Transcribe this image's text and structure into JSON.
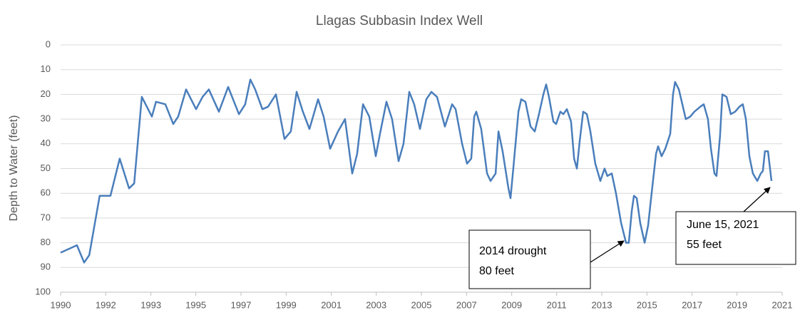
{
  "chart_data": {
    "type": "line",
    "title": "Llagas Subbasin Index Well",
    "y_label": "Depth to Water (feet)",
    "xlim": [
      1990,
      2021
    ],
    "xticks": [
      {
        "value": 1990,
        "label": "1990"
      },
      {
        "value": 1991.94,
        "label": "1992"
      },
      {
        "value": 1993.88,
        "label": "1993"
      },
      {
        "value": 1995.81,
        "label": "1995"
      },
      {
        "value": 1997.75,
        "label": "1997"
      },
      {
        "value": 1999.69,
        "label": "1999"
      },
      {
        "value": 2001.63,
        "label": "2001"
      },
      {
        "value": 2003.56,
        "label": "2003"
      },
      {
        "value": 2005.5,
        "label": "2005"
      },
      {
        "value": 2007.44,
        "label": "2007"
      },
      {
        "value": 2009.38,
        "label": "2009"
      },
      {
        "value": 2011.31,
        "label": "2011"
      },
      {
        "value": 2013.25,
        "label": "2013"
      },
      {
        "value": 2015.19,
        "label": "2015"
      },
      {
        "value": 2017.13,
        "label": "2017"
      },
      {
        "value": 2019.06,
        "label": "2019"
      },
      {
        "value": 2021,
        "label": "2021"
      }
    ],
    "ylim": [
      0,
      100
    ],
    "yticks": [
      0,
      10,
      20,
      30,
      40,
      50,
      60,
      70,
      80,
      90,
      100
    ],
    "y_inverted": true,
    "grid": true,
    "series": [
      {
        "color": "#4a7ebb",
        "x": [
          1990.0,
          1990.7,
          1991.01,
          1991.23,
          1991.68,
          1992.14,
          1992.54,
          1992.94,
          1993.16,
          1993.49,
          1993.92,
          1994.1,
          1994.5,
          1994.84,
          1995.05,
          1995.39,
          1995.82,
          1996.1,
          1996.37,
          1996.8,
          1997.2,
          1997.66,
          1997.93,
          1998.15,
          1998.36,
          1998.67,
          1998.91,
          1999.25,
          1999.62,
          1999.89,
          2000.14,
          2000.41,
          2000.69,
          2001.06,
          2001.3,
          2001.58,
          2001.92,
          2002.22,
          2002.53,
          2002.74,
          2002.99,
          2003.26,
          2003.54,
          2003.72,
          2004.0,
          2004.24,
          2004.52,
          2004.73,
          2004.98,
          2005.19,
          2005.44,
          2005.71,
          2005.93,
          2006.17,
          2006.51,
          2006.82,
          2006.97,
          2007.25,
          2007.46,
          2007.64,
          2007.77,
          2007.86,
          2008.07,
          2008.32,
          2008.47,
          2008.69,
          2008.81,
          2008.99,
          2009.24,
          2009.33,
          2009.45,
          2009.67,
          2009.79,
          2009.97,
          2010.19,
          2010.37,
          2010.55,
          2010.74,
          2010.86,
          2010.98,
          2011.17,
          2011.29,
          2011.47,
          2011.6,
          2011.75,
          2011.93,
          2012.06,
          2012.18,
          2012.3,
          2012.45,
          2012.61,
          2012.76,
          2012.97,
          2013.19,
          2013.37,
          2013.49,
          2013.68,
          2013.86,
          2014.08,
          2014.29,
          2014.41,
          2014.54,
          2014.63,
          2014.75,
          2014.9,
          2015.09,
          2015.24,
          2015.39,
          2015.58,
          2015.67,
          2015.82,
          2015.98,
          2016.19,
          2016.31,
          2016.4,
          2016.56,
          2016.71,
          2016.86,
          2017.05,
          2017.23,
          2017.48,
          2017.63,
          2017.81,
          2017.94,
          2018.09,
          2018.18,
          2018.33,
          2018.43,
          2018.61,
          2018.79,
          2018.98,
          2019.16,
          2019.31,
          2019.44,
          2019.59,
          2019.74,
          2019.93,
          2020.08,
          2020.17,
          2020.26,
          2020.39,
          2020.54
        ],
        "values": [
          84,
          81,
          88,
          85,
          61,
          61,
          46,
          58,
          56,
          21,
          29,
          23,
          24,
          32,
          29,
          18,
          26,
          21,
          18,
          27,
          17,
          28,
          24,
          14,
          18,
          26,
          25,
          20,
          38,
          35,
          19,
          27,
          34,
          22,
          29,
          42,
          35,
          30,
          52,
          44,
          24,
          29,
          45,
          36,
          23,
          30,
          47,
          40,
          19,
          24,
          34,
          22,
          19,
          21,
          33,
          24,
          26,
          40,
          48,
          46,
          29,
          27,
          34,
          52,
          55,
          52,
          35,
          43,
          58,
          62,
          50,
          27,
          22,
          23,
          33,
          35,
          28,
          20,
          16,
          21,
          31,
          32,
          27,
          28,
          26,
          31,
          46,
          50,
          39,
          27,
          28,
          35,
          48,
          55,
          50,
          53,
          52,
          60,
          72,
          80,
          80,
          67,
          61,
          62,
          72,
          80,
          73,
          60,
          44,
          41,
          45,
          42,
          36,
          20,
          15,
          18,
          24,
          30,
          29,
          27,
          25,
          24,
          30,
          42,
          52,
          53,
          37,
          20,
          21,
          28,
          27,
          25,
          24,
          30,
          45,
          52,
          55,
          52,
          51,
          43,
          43,
          55
        ]
      }
    ],
    "annotations": [
      {
        "lines": [
          "2014 drought",
          "80 feet"
        ]
      },
      {
        "lines": [
          "June 15, 2021",
          "55 feet"
        ]
      }
    ]
  }
}
